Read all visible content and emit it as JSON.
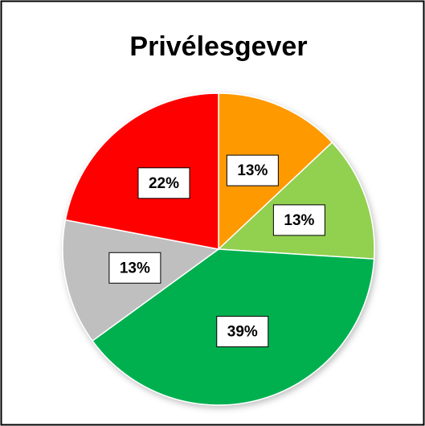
{
  "chart_data": {
    "type": "pie",
    "title": "Privélesgever",
    "values": [
      13,
      13,
      39,
      13,
      22
    ],
    "value_labels": [
      "13%",
      "13%",
      "39%",
      "13%",
      "22%"
    ],
    "colors": [
      "#ff9900",
      "#92d050",
      "#00b050",
      "#bfbfbf",
      "#ff0000"
    ]
  }
}
